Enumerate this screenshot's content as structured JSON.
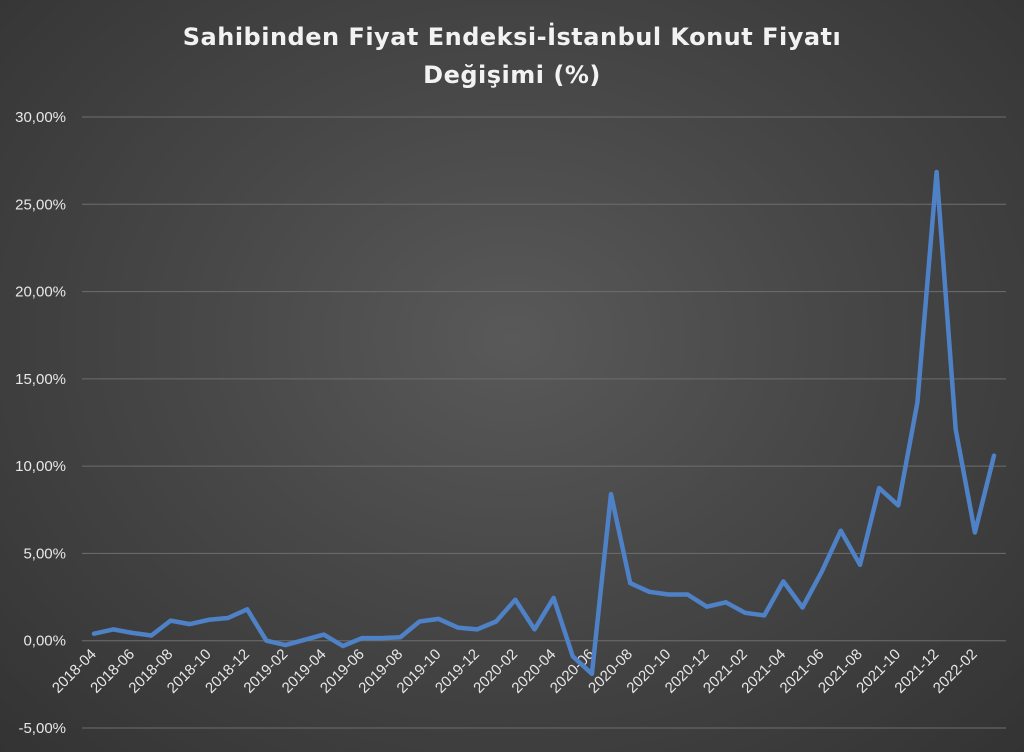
{
  "chart_data": {
    "type": "line",
    "title_lines": [
      "Sahibinden Fiyat Endeksi-İstanbul Konut Fiyatı",
      "Değişimi (%)"
    ],
    "ylim": [
      -5,
      30
    ],
    "ytick_values": [
      -5,
      0,
      5,
      10,
      15,
      20,
      25,
      30
    ],
    "ytick_labels": [
      "-5,00%",
      "0,00%",
      "5,00%",
      "10,00%",
      "15,00%",
      "20,00%",
      "25,00%",
      "30,00%"
    ],
    "x_tick_labels": [
      "2018-04",
      "2018-06",
      "2018-08",
      "2018-10",
      "2018-12",
      "2019-02",
      "2019-04",
      "2019-06",
      "2019-08",
      "2019-10",
      "2019-12",
      "2020-02",
      "2020-04",
      "2020-06",
      "2020-08",
      "2020-10",
      "2020-12",
      "2021-02",
      "2021-04",
      "2021-06",
      "2021-08",
      "2021-10",
      "2021-12",
      "2022-02"
    ],
    "grid": true,
    "series": [
      {
        "color": "#4f81c7",
        "x": [
          "2018-04",
          "2018-05",
          "2018-06",
          "2018-07",
          "2018-08",
          "2018-09",
          "2018-10",
          "2018-11",
          "2018-12",
          "2019-01",
          "2019-02",
          "2019-03",
          "2019-04",
          "2019-05",
          "2019-06",
          "2019-07",
          "2019-08",
          "2019-09",
          "2019-10",
          "2019-11",
          "2019-12",
          "2020-01",
          "2020-02",
          "2020-03",
          "2020-04",
          "2020-05",
          "2020-06",
          "2020-07",
          "2020-08",
          "2020-09",
          "2020-10",
          "2020-11",
          "2020-12",
          "2021-01",
          "2021-02",
          "2021-03",
          "2021-04",
          "2021-05",
          "2021-06",
          "2021-07",
          "2021-08",
          "2021-09",
          "2021-10",
          "2021-11",
          "2021-12",
          "2022-01",
          "2022-02",
          "2022-03"
        ],
        "values": [
          0.4,
          0.65,
          0.45,
          0.3,
          1.15,
          0.95,
          1.2,
          1.3,
          1.8,
          0.0,
          -0.25,
          0.05,
          0.35,
          -0.3,
          0.15,
          0.15,
          0.2,
          1.1,
          1.25,
          0.75,
          0.65,
          1.1,
          2.35,
          0.65,
          2.45,
          -0.9,
          -1.9,
          8.4,
          3.3,
          2.8,
          2.65,
          2.65,
          1.95,
          2.2,
          1.6,
          1.45,
          3.4,
          1.9,
          3.95,
          6.3,
          4.35,
          8.75,
          7.75,
          13.65,
          26.85,
          12.1,
          6.2,
          10.6
        ]
      }
    ]
  }
}
